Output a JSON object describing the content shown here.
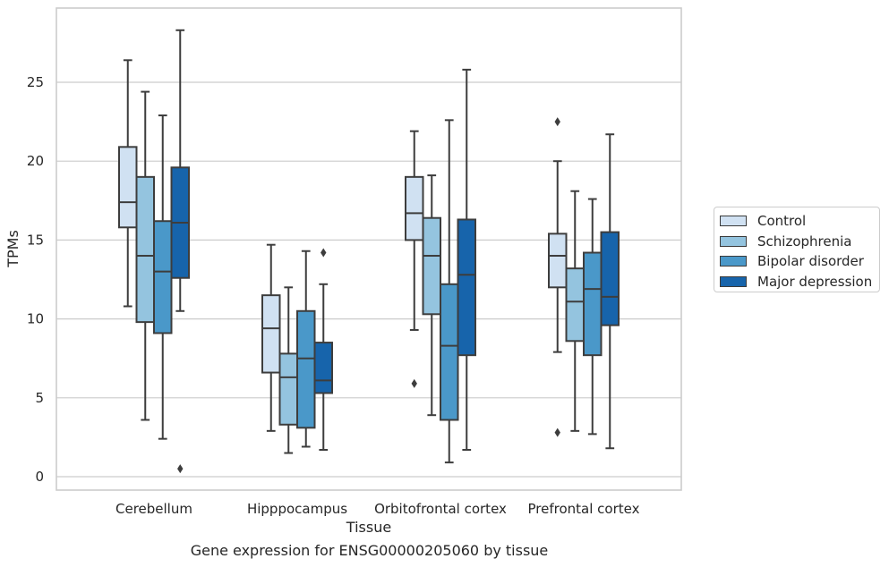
{
  "caption": "Gene expression for ENSG00000205060 by tissue",
  "chart_data": {
    "type": "box",
    "title": "",
    "xlabel": "Tissue",
    "ylabel": "TPMs",
    "ylim": [
      -0.8,
      29.6
    ],
    "yticks": [
      0,
      5,
      10,
      15,
      20,
      25
    ],
    "grid": "horizontal",
    "legend_position": "right",
    "categories": [
      "Cerebellum",
      "Hipppocampus",
      "Orbitofrontal cortex",
      "Prefrontal cortex"
    ],
    "series": [
      {
        "name": "Control",
        "color": "#d0e1f2",
        "boxes": [
          {
            "whisker_low": 10.8,
            "q1": 15.8,
            "median": 17.4,
            "q3": 20.9,
            "whisker_high": 26.4,
            "outliers": []
          },
          {
            "whisker_low": 2.9,
            "q1": 6.6,
            "median": 9.4,
            "q3": 11.5,
            "whisker_high": 14.7,
            "outliers": []
          },
          {
            "whisker_low": 9.3,
            "q1": 15.0,
            "median": 16.7,
            "q3": 19.0,
            "whisker_high": 21.9,
            "outliers": [
              5.9
            ]
          },
          {
            "whisker_low": 7.9,
            "q1": 12.0,
            "median": 14.0,
            "q3": 15.4,
            "whisker_high": 20.0,
            "outliers": [
              22.5,
              2.8
            ]
          }
        ]
      },
      {
        "name": "Schizophrenia",
        "color": "#94c4df",
        "boxes": [
          {
            "whisker_low": 3.6,
            "q1": 9.8,
            "median": 14.0,
            "q3": 19.0,
            "whisker_high": 24.4,
            "outliers": []
          },
          {
            "whisker_low": 1.5,
            "q1": 3.3,
            "median": 6.3,
            "q3": 7.8,
            "whisker_high": 12.0,
            "outliers": []
          },
          {
            "whisker_low": 3.9,
            "q1": 10.3,
            "median": 14.0,
            "q3": 16.4,
            "whisker_high": 19.1,
            "outliers": []
          },
          {
            "whisker_low": 2.9,
            "q1": 8.6,
            "median": 11.1,
            "q3": 13.2,
            "whisker_high": 18.1,
            "outliers": []
          }
        ]
      },
      {
        "name": "Bipolar disorder",
        "color": "#4a98c9",
        "boxes": [
          {
            "whisker_low": 2.4,
            "q1": 9.1,
            "median": 13.0,
            "q3": 16.2,
            "whisker_high": 22.9,
            "outliers": []
          },
          {
            "whisker_low": 1.9,
            "q1": 3.1,
            "median": 7.5,
            "q3": 10.5,
            "whisker_high": 14.3,
            "outliers": []
          },
          {
            "whisker_low": 0.9,
            "q1": 3.6,
            "median": 8.3,
            "q3": 12.2,
            "whisker_high": 22.6,
            "outliers": []
          },
          {
            "whisker_low": 2.7,
            "q1": 7.7,
            "median": 11.9,
            "q3": 14.2,
            "whisker_high": 17.6,
            "outliers": []
          }
        ]
      },
      {
        "name": "Major depression",
        "color": "#1764ab",
        "boxes": [
          {
            "whisker_low": 10.5,
            "q1": 12.6,
            "median": 16.1,
            "q3": 19.6,
            "whisker_high": 28.3,
            "outliers": [
              0.5
            ]
          },
          {
            "whisker_low": 1.7,
            "q1": 5.3,
            "median": 6.1,
            "q3": 8.5,
            "whisker_high": 12.2,
            "outliers": [
              14.2
            ]
          },
          {
            "whisker_low": 1.7,
            "q1": 7.7,
            "median": 12.8,
            "q3": 16.3,
            "whisker_high": 25.8,
            "outliers": []
          },
          {
            "whisker_low": 1.8,
            "q1": 9.6,
            "median": 11.4,
            "q3": 15.5,
            "whisker_high": 21.7,
            "outliers": []
          }
        ]
      }
    ]
  }
}
